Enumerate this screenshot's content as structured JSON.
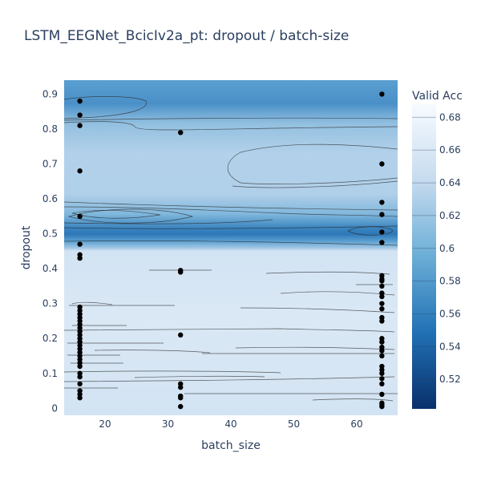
{
  "chart_data": {
    "type": "contour",
    "title": "LSTM_EEGNet_BcicIv2a_pt: dropout / batch-size",
    "xlabel": "batch_size",
    "ylabel": "dropout",
    "xlim": [
      13.5,
      66.5
    ],
    "ylim": [
      -0.02,
      0.94
    ],
    "x_ticks": [
      20,
      30,
      40,
      50,
      60
    ],
    "y_ticks": [
      0,
      0.1,
      0.2,
      0.3,
      0.4,
      0.5,
      0.6,
      0.7,
      0.8,
      0.9
    ],
    "colorbar": {
      "title": "Valid Acc",
      "range": [
        0.502,
        0.688
      ],
      "ticks": [
        0.52,
        0.54,
        0.56,
        0.58,
        0.6,
        0.62,
        0.64,
        0.66,
        0.68
      ],
      "colorscale": [
        "#08306b",
        "#2171b5",
        "#6baed6",
        "#c6dbef",
        "#f7fbff"
      ]
    },
    "points": [
      {
        "x": 16,
        "y": 0.88
      },
      {
        "x": 16,
        "y": 0.84
      },
      {
        "x": 16,
        "y": 0.81
      },
      {
        "x": 16,
        "y": 0.68
      },
      {
        "x": 16,
        "y": 0.55
      },
      {
        "x": 16,
        "y": 0.47
      },
      {
        "x": 16,
        "y": 0.44
      },
      {
        "x": 16,
        "y": 0.43
      },
      {
        "x": 16,
        "y": 0.29
      },
      {
        "x": 16,
        "y": 0.28
      },
      {
        "x": 16,
        "y": 0.27
      },
      {
        "x": 16,
        "y": 0.26
      },
      {
        "x": 16,
        "y": 0.25
      },
      {
        "x": 16,
        "y": 0.24
      },
      {
        "x": 16,
        "y": 0.23
      },
      {
        "x": 16,
        "y": 0.22
      },
      {
        "x": 16,
        "y": 0.21
      },
      {
        "x": 16,
        "y": 0.2
      },
      {
        "x": 16,
        "y": 0.19
      },
      {
        "x": 16,
        "y": 0.18
      },
      {
        "x": 16,
        "y": 0.17
      },
      {
        "x": 16,
        "y": 0.16
      },
      {
        "x": 16,
        "y": 0.15
      },
      {
        "x": 16,
        "y": 0.14
      },
      {
        "x": 16,
        "y": 0.13
      },
      {
        "x": 16,
        "y": 0.12
      },
      {
        "x": 16,
        "y": 0.1
      },
      {
        "x": 16,
        "y": 0.09
      },
      {
        "x": 16,
        "y": 0.07
      },
      {
        "x": 16,
        "y": 0.05
      },
      {
        "x": 16,
        "y": 0.04
      },
      {
        "x": 16,
        "y": 0.03
      },
      {
        "x": 32,
        "y": 0.79
      },
      {
        "x": 32,
        "y": 0.395
      },
      {
        "x": 32,
        "y": 0.39
      },
      {
        "x": 32,
        "y": 0.21
      },
      {
        "x": 32,
        "y": 0.07
      },
      {
        "x": 32,
        "y": 0.06
      },
      {
        "x": 32,
        "y": 0.035
      },
      {
        "x": 32,
        "y": 0.03
      },
      {
        "x": 32,
        "y": 0.005
      },
      {
        "x": 64,
        "y": 0.9
      },
      {
        "x": 64,
        "y": 0.7
      },
      {
        "x": 64,
        "y": 0.59
      },
      {
        "x": 64,
        "y": 0.555
      },
      {
        "x": 64,
        "y": 0.505
      },
      {
        "x": 64,
        "y": 0.475
      },
      {
        "x": 64,
        "y": 0.38
      },
      {
        "x": 64,
        "y": 0.37
      },
      {
        "x": 64,
        "y": 0.365
      },
      {
        "x": 64,
        "y": 0.35
      },
      {
        "x": 64,
        "y": 0.33
      },
      {
        "x": 64,
        "y": 0.32
      },
      {
        "x": 64,
        "y": 0.3
      },
      {
        "x": 64,
        "y": 0.285
      },
      {
        "x": 64,
        "y": 0.26
      },
      {
        "x": 64,
        "y": 0.25
      },
      {
        "x": 64,
        "y": 0.2
      },
      {
        "x": 64,
        "y": 0.19
      },
      {
        "x": 64,
        "y": 0.175
      },
      {
        "x": 64,
        "y": 0.165
      },
      {
        "x": 64,
        "y": 0.15
      },
      {
        "x": 64,
        "y": 0.12
      },
      {
        "x": 64,
        "y": 0.11
      },
      {
        "x": 64,
        "y": 0.1
      },
      {
        "x": 64,
        "y": 0.085
      },
      {
        "x": 64,
        "y": 0.07
      },
      {
        "x": 64,
        "y": 0.04
      },
      {
        "x": 64,
        "y": 0.015
      },
      {
        "x": 64,
        "y": 0.01
      },
      {
        "x": 64,
        "y": 0.005
      }
    ],
    "value_bands": [
      {
        "y": [
          -0.02,
          0.47
        ],
        "value": 0.655
      },
      {
        "y": [
          0.47,
          0.53
        ],
        "value": 0.575
      },
      {
        "y": [
          0.53,
          0.565
        ],
        "value": 0.54
      },
      {
        "y": [
          0.565,
          0.62
        ],
        "value": 0.6
      },
      {
        "y": [
          0.62,
          0.8
        ],
        "value": 0.625
      },
      {
        "y": [
          0.8,
          0.94
        ],
        "value": 0.595
      }
    ],
    "grid": false
  }
}
